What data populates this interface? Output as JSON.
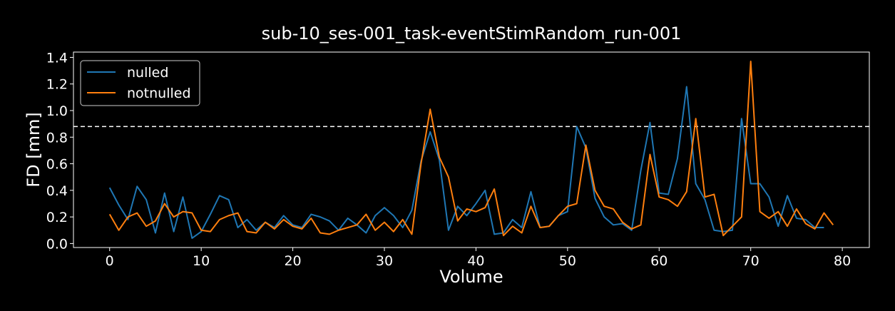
{
  "chart_data": {
    "type": "line",
    "title": "sub-10_ses-001_task-eventStimRandom_run-001",
    "xlabel": "Volume",
    "ylabel": "FD [mm]",
    "xlim": [
      -3.95,
      82.95
    ],
    "ylim": [
      -0.03,
      1.44
    ],
    "xticks": [
      0,
      10,
      20,
      30,
      40,
      50,
      60,
      70,
      80
    ],
    "yticks": [
      0.0,
      0.2,
      0.4,
      0.6,
      0.8,
      1.0,
      1.2,
      1.4
    ],
    "ytick_labels": [
      "0.0",
      "0.2",
      "0.4",
      "0.6",
      "0.8",
      "1.0",
      "1.2",
      "1.4"
    ],
    "threshold": {
      "y": 0.88,
      "color": "#ffffff",
      "style": "dashed"
    },
    "legend_position": "top-left",
    "background": "#000000",
    "series": [
      {
        "name": "nulled",
        "color": "#1f77b4",
        "x_start": 0,
        "values": [
          0.42,
          0.29,
          0.18,
          0.43,
          0.33,
          0.08,
          0.38,
          0.09,
          0.35,
          0.04,
          0.09,
          0.22,
          0.36,
          0.33,
          0.12,
          0.18,
          0.1,
          0.16,
          0.12,
          0.21,
          0.14,
          0.12,
          0.22,
          0.2,
          0.17,
          0.1,
          0.19,
          0.14,
          0.08,
          0.21,
          0.27,
          0.21,
          0.12,
          0.25,
          0.62,
          0.84,
          0.63,
          0.1,
          0.28,
          0.21,
          0.3,
          0.4,
          0.07,
          0.08,
          0.18,
          0.12,
          0.39,
          0.12,
          0.13,
          0.21,
          0.24,
          0.88,
          0.72,
          0.34,
          0.2,
          0.14,
          0.15,
          0.1,
          0.55,
          0.91,
          0.38,
          0.37,
          0.64,
          1.18,
          0.45,
          0.33,
          0.1,
          0.09,
          0.1,
          0.94,
          0.45,
          0.45,
          0.35,
          0.13,
          0.36,
          0.19,
          0.18,
          0.12,
          0.12
        ]
      },
      {
        "name": "notnulled",
        "color": "#ff7f0e",
        "x_start": 0,
        "values": [
          0.22,
          0.1,
          0.2,
          0.23,
          0.13,
          0.17,
          0.3,
          0.2,
          0.24,
          0.23,
          0.1,
          0.09,
          0.18,
          0.21,
          0.23,
          0.09,
          0.08,
          0.16,
          0.11,
          0.18,
          0.13,
          0.11,
          0.19,
          0.08,
          0.07,
          0.1,
          0.12,
          0.14,
          0.22,
          0.1,
          0.16,
          0.09,
          0.18,
          0.07,
          0.6,
          1.01,
          0.65,
          0.5,
          0.17,
          0.26,
          0.24,
          0.27,
          0.41,
          0.06,
          0.13,
          0.08,
          0.28,
          0.12,
          0.13,
          0.21,
          0.28,
          0.3,
          0.74,
          0.4,
          0.28,
          0.26,
          0.16,
          0.11,
          0.14,
          0.67,
          0.35,
          0.33,
          0.28,
          0.39,
          0.94,
          0.35,
          0.37,
          0.06,
          0.13,
          0.2,
          1.37,
          0.24,
          0.19,
          0.24,
          0.13,
          0.26,
          0.15,
          0.11,
          0.23,
          0.14
        ]
      }
    ]
  }
}
